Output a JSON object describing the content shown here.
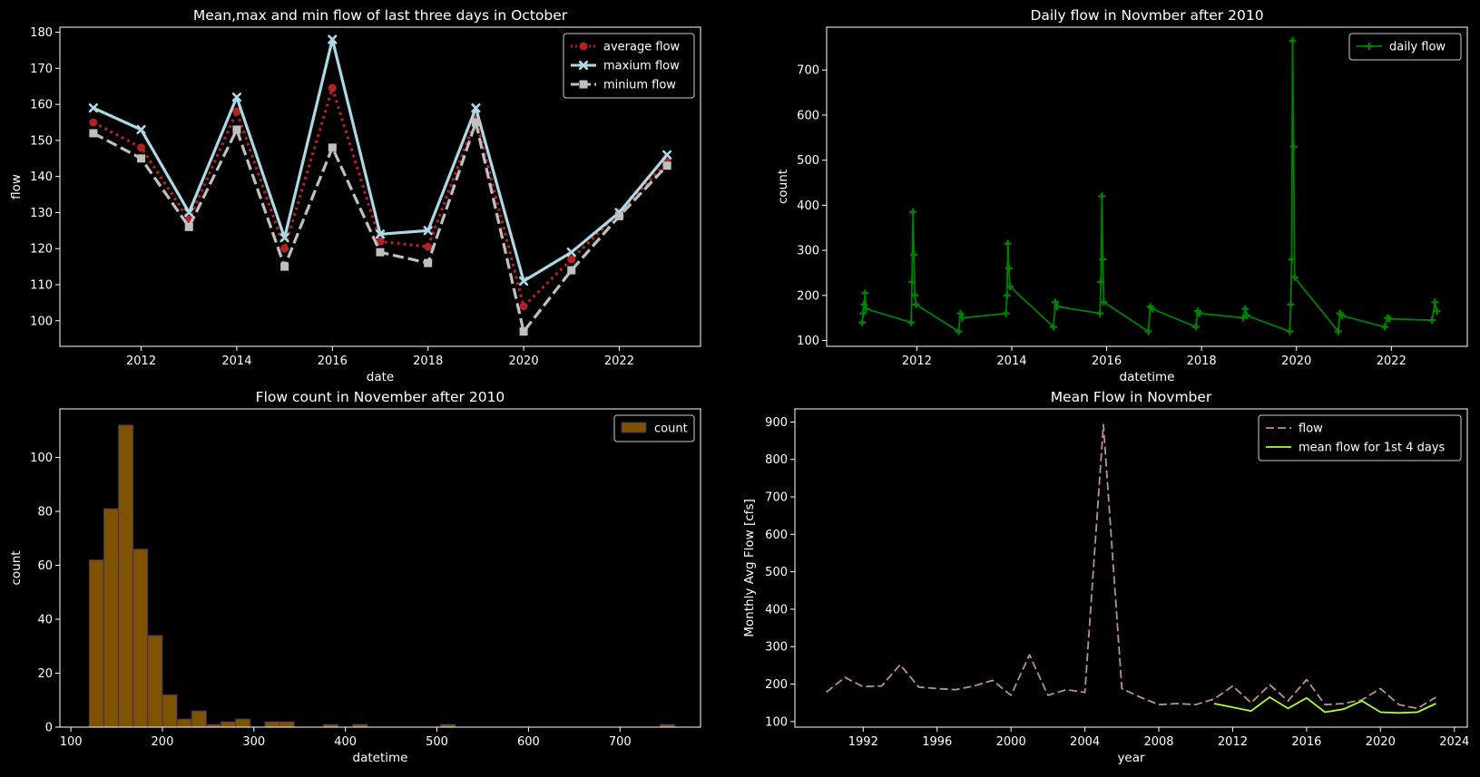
{
  "colors": {
    "background": "#000000",
    "foreground": "#ffffff"
  },
  "chart_data": [
    {
      "id": "p1",
      "type": "line",
      "title": "Mean,max and min flow of last three days in October",
      "xlabel": "date",
      "ylabel": "flow",
      "xlim": [
        2010.3,
        2023.7
      ],
      "ylim": [
        92.9,
        181.4
      ],
      "xticks": [
        2012,
        2014,
        2016,
        2018,
        2020,
        2022
      ],
      "xtick_labels": [
        "2012",
        "2014",
        "2016",
        "2018",
        "2020",
        "2022"
      ],
      "yticks": [
        100,
        110,
        120,
        130,
        140,
        150,
        160,
        170,
        180
      ],
      "ytick_labels": [
        "100",
        "110",
        "120",
        "130",
        "140",
        "150",
        "160",
        "170",
        "180"
      ],
      "legend": "top-right",
      "x": [
        2011,
        2012,
        2013,
        2014,
        2015,
        2016,
        2017,
        2018,
        2019,
        2020,
        2021,
        2022,
        2023
      ],
      "series": [
        {
          "name": "average flow",
          "color": "#b22222",
          "dash": "dotted",
          "marker": "circle",
          "values": [
            155,
            148,
            128,
            158,
            120,
            164.5,
            122,
            120.5,
            156,
            104,
            117,
            130,
            144
          ]
        },
        {
          "name": "maxium flow",
          "color": "#add8e6",
          "dash": "solid",
          "marker": "x",
          "values": [
            159,
            153,
            130,
            162,
            123,
            178,
            124,
            125,
            159,
            111,
            119,
            130,
            146
          ]
        },
        {
          "name": "minium flow",
          "color": "#c0c0c0",
          "dash": "dashed",
          "marker": "square",
          "values": [
            152,
            145,
            126,
            153,
            115,
            148,
            119,
            116,
            155,
            97,
            114,
            129,
            143
          ]
        }
      ]
    },
    {
      "id": "p2",
      "type": "line",
      "title": "Daily flow in Novmber after 2010",
      "xlabel": "datetime",
      "ylabel": "count",
      "xlim": [
        2010.1,
        2023.6
      ],
      "ylim": [
        87,
        795
      ],
      "xticks": [
        2012,
        2014,
        2016,
        2018,
        2020,
        2022
      ],
      "xtick_labels": [
        "2012",
        "2014",
        "2016",
        "2018",
        "2020",
        "2022"
      ],
      "yticks": [
        100,
        200,
        300,
        400,
        500,
        600,
        700
      ],
      "ytick_labels": [
        "100",
        "200",
        "300",
        "400",
        "500",
        "600",
        "700"
      ],
      "legend": "top-right",
      "series": [
        {
          "name": "daily flow",
          "color": "#008000",
          "marker": "plus",
          "x": [
            2010.85,
            2010.87,
            2010.89,
            2010.91,
            2010.93,
            2011.88,
            2011.9,
            2011.92,
            2011.94,
            2011.96,
            2011.98,
            2012.88,
            2012.92,
            2012.96,
            2013.88,
            2013.9,
            2013.92,
            2013.94,
            2013.96,
            2014.88,
            2014.92,
            2014.96,
            2015.86,
            2015.88,
            2015.9,
            2015.92,
            2015.94,
            2016.88,
            2016.92,
            2016.96,
            2017.88,
            2017.92,
            2017.96,
            2018.88,
            2018.92,
            2018.96,
            2019.86,
            2019.88,
            2019.9,
            2019.92,
            2019.94,
            2019.96,
            2020.88,
            2020.92,
            2020.96,
            2021.86,
            2021.92,
            2021.96,
            2022.86,
            2022.92,
            2022.96
          ],
          "values": [
            140,
            160,
            180,
            205,
            170,
            140,
            230,
            385,
            290,
            200,
            180,
            120,
            160,
            150,
            160,
            200,
            315,
            260,
            220,
            130,
            185,
            175,
            160,
            230,
            420,
            280,
            185,
            120,
            175,
            170,
            130,
            165,
            160,
            150,
            170,
            155,
            120,
            180,
            280,
            765,
            530,
            240,
            120,
            160,
            155,
            130,
            150,
            148,
            145,
            185,
            165
          ]
        }
      ]
    },
    {
      "id": "p3",
      "type": "bar",
      "title": "Flow count in November after 2010",
      "xlabel": "datetime",
      "ylabel": "count",
      "xlim": [
        88,
        788
      ],
      "ylim": [
        0,
        118
      ],
      "xticks": [
        100,
        200,
        300,
        400,
        500,
        600,
        700
      ],
      "xtick_labels": [
        "100",
        "200",
        "300",
        "400",
        "500",
        "600",
        "700"
      ],
      "yticks": [
        0,
        20,
        40,
        60,
        80,
        100
      ],
      "ytick_labels": [
        "0",
        "20",
        "40",
        "60",
        "80",
        "100"
      ],
      "legend": "top-right",
      "series": [
        {
          "name": "count",
          "color": "#7f5200",
          "edge": "#3b2d73",
          "bin_start": 120,
          "bin_width": 16,
          "values": [
            62,
            81,
            112,
            66,
            34,
            12,
            3,
            6,
            1,
            2,
            3,
            0,
            2,
            2,
            0,
            0,
            1,
            0,
            1,
            0,
            0,
            0,
            0,
            0,
            1,
            0,
            0,
            0,
            0,
            0,
            0,
            0,
            0,
            0,
            0,
            0,
            0,
            0,
            0,
            1
          ]
        }
      ]
    },
    {
      "id": "p4",
      "type": "line",
      "title": "Mean Flow in Novmber",
      "xlabel": "year",
      "ylabel": "Monthly Avg Flow [cfs]",
      "xlim": [
        1988.3,
        2024.7
      ],
      "ylim": [
        85,
        935
      ],
      "xticks": [
        1992,
        1996,
        2000,
        2004,
        2008,
        2012,
        2016,
        2020,
        2024
      ],
      "xtick_labels": [
        "1992",
        "1996",
        "2000",
        "2004",
        "2008",
        "2012",
        "2016",
        "2020",
        "2024"
      ],
      "yticks": [
        100,
        200,
        300,
        400,
        500,
        600,
        700,
        800,
        900
      ],
      "ytick_labels": [
        "100",
        "200",
        "300",
        "400",
        "500",
        "600",
        "700",
        "800",
        "900"
      ],
      "legend": "top-right",
      "series": [
        {
          "name": "flow",
          "color": "#bc8f8f",
          "dash": "dashed",
          "x": [
            1990,
            1991,
            1992,
            1993,
            1994,
            1995,
            1996,
            1997,
            1998,
            1999,
            2000,
            2001,
            2002,
            2003,
            2004,
            2005,
            2006,
            2007,
            2008,
            2009,
            2010,
            2011,
            2012,
            2013,
            2014,
            2015,
            2016,
            2017,
            2018,
            2019,
            2020,
            2021,
            2022,
            2023
          ],
          "values": [
            178,
            218,
            193,
            195,
            252,
            192,
            188,
            185,
            195,
            210,
            170,
            278,
            170,
            185,
            178,
            893,
            188,
            165,
            145,
            148,
            145,
            160,
            195,
            150,
            198,
            155,
            212,
            145,
            148,
            158,
            188,
            145,
            135,
            165
          ]
        },
        {
          "name": "mean flow for 1st 4 days",
          "color": "#adff2f",
          "dash": "solid",
          "x": [
            2011,
            2012,
            2013,
            2014,
            2015,
            2016,
            2017,
            2018,
            2019,
            2020,
            2021,
            2022,
            2023
          ],
          "values": [
            148,
            138,
            128,
            165,
            135,
            163,
            125,
            133,
            155,
            125,
            123,
            125,
            148
          ]
        }
      ]
    }
  ]
}
